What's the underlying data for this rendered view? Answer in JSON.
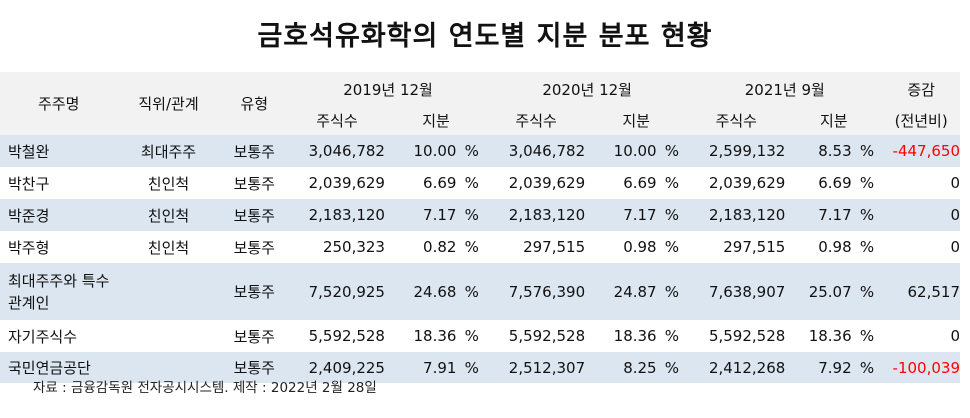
{
  "title": "금호석유화학의 연도별 지분 분포 현황",
  "header": {
    "col_name": "주주명",
    "col_position": "직위/관계",
    "col_type": "유형",
    "period1": "2019년 12월",
    "period2": "2020년 12월",
    "period3": "2021년 9월",
    "change_top": "증감",
    "change_bottom": "(전년비)",
    "shares": "주식수",
    "stake": "지분"
  },
  "pct_sign": "%",
  "rows": [
    {
      "name": "박철완",
      "position": "최대주주",
      "type": "보통주",
      "s1": "3,046,782",
      "p1": "10.00",
      "s2": "3,046,782",
      "p2": "10.00",
      "s3": "2,599,132",
      "p3": "8.53",
      "change": "-447,650"
    },
    {
      "name": "박찬구",
      "position": "친인척",
      "type": "보통주",
      "s1": "2,039,629",
      "p1": "6.69",
      "s2": "2,039,629",
      "p2": "6.69",
      "s3": "2,039,629",
      "p3": "6.69",
      "change": "0"
    },
    {
      "name": "박준경",
      "position": "친인척",
      "type": "보통주",
      "s1": "2,183,120",
      "p1": "7.17",
      "s2": "2,183,120",
      "p2": "7.17",
      "s3": "2,183,120",
      "p3": "7.17",
      "change": "0"
    },
    {
      "name": "박주형",
      "position": "친인척",
      "type": "보통주",
      "s1": "250,323",
      "p1": "0.82",
      "s2": "297,515",
      "p2": "0.98",
      "s3": "297,515",
      "p3": "0.98",
      "change": "0"
    },
    {
      "name": "최대주주와 특수관계인",
      "position": "",
      "type": "보통주",
      "s1": "7,520,925",
      "p1": "24.68",
      "s2": "7,576,390",
      "p2": "24.87",
      "s3": "7,638,907",
      "p3": "25.07",
      "change": "62,517"
    },
    {
      "name": "자기주식수",
      "position": "",
      "type": "보통주",
      "s1": "5,592,528",
      "p1": "18.36",
      "s2": "5,592,528",
      "p2": "18.36",
      "s3": "5,592,528",
      "p3": "18.36",
      "change": "0"
    },
    {
      "name": "국민연금공단",
      "position": "",
      "type": "보통주",
      "s1": "2,409,225",
      "p1": "7.91",
      "s2": "2,512,307",
      "p2": "8.25",
      "s3": "2,412,268",
      "p3": "7.92",
      "change": "-100,039"
    }
  ],
  "note": "자료 : 금융감독원 전자공시시스템. 제작 : 2022년 2월 28일",
  "colors": {
    "header_bg": "#f2f2f2",
    "row_blue": "#dce6f1",
    "negative": "#ff0000"
  }
}
